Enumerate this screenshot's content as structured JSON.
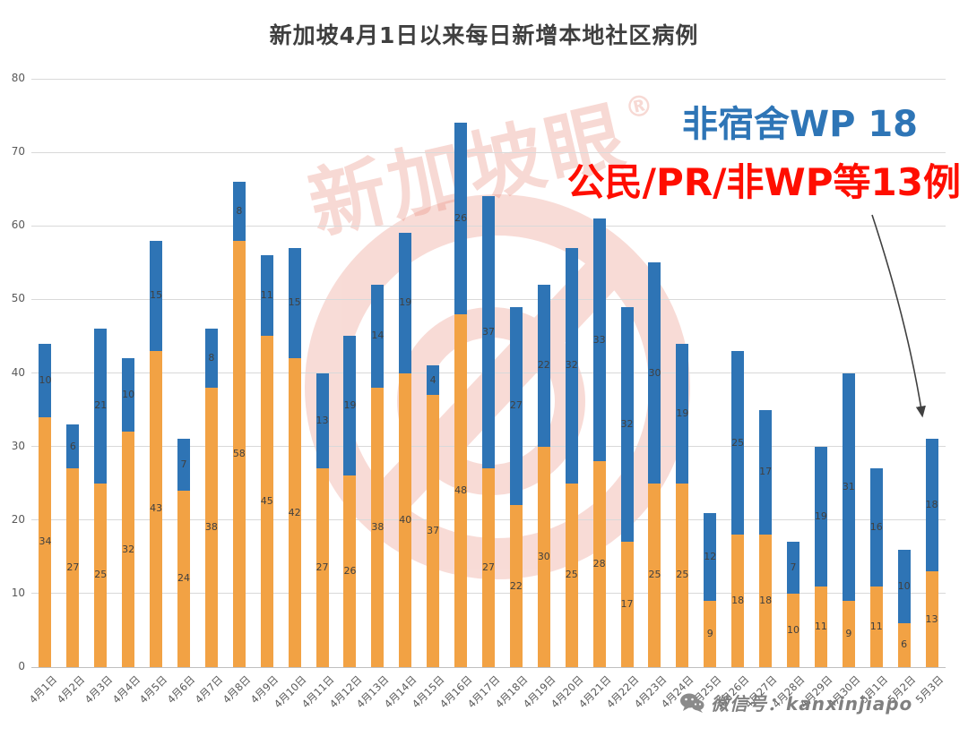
{
  "title": "新加坡4月1日以来每日新增本地社区病例",
  "annotations": {
    "line1": "非宿舍WP 18",
    "line2": "公民/PR/非WP等13例"
  },
  "watermark": {
    "text": "新加坡眼",
    "reg_mark": "®"
  },
  "footer": {
    "wechat_account": "微信号：kanxinjiapo"
  },
  "colors": {
    "bar_orange": "#F2A244",
    "bar_blue": "#2E74B5",
    "annotation_blue": "#2E75B6",
    "annotation_red": "#FF0E00",
    "grid": "#D9D9D9",
    "axis_text": "#595959",
    "data_label": "#404040",
    "title_text": "#3F3F3F",
    "watermark": "#E98B7B",
    "footer_text": "#808080",
    "arrow": "#404040"
  },
  "chart_data": {
    "type": "bar",
    "stacked": true,
    "title": "新加坡4月1日以来每日新增本地社区病例",
    "xlabel": "",
    "ylabel": "",
    "ylim": [
      0,
      80
    ],
    "yticks": [
      0,
      10,
      20,
      30,
      40,
      50,
      60,
      70,
      80
    ],
    "grid": true,
    "legend_position": "none",
    "data_labels": true,
    "categories": [
      "4月1日",
      "4月2日",
      "4月3日",
      "4月4日",
      "4月5日",
      "4月6日",
      "4月7日",
      "4月8日",
      "4月9日",
      "4月10日",
      "4月11日",
      "4月12日",
      "4月13日",
      "4月14日",
      "4月15日",
      "4月16日",
      "4月17日",
      "4月18日",
      "4月19日",
      "4月20日",
      "4月21日",
      "4月22日",
      "4月23日",
      "4月24日",
      "4月25日",
      "4月26日",
      "4月27日",
      "4月28日",
      "4月29日",
      "4月30日",
      "5月1日",
      "5月2日",
      "5月3日"
    ],
    "series": [
      {
        "name": "公民/PR/非WP",
        "color": "#F2A244",
        "values": [
          34,
          27,
          25,
          32,
          43,
          24,
          38,
          58,
          45,
          42,
          27,
          26,
          38,
          40,
          37,
          48,
          27,
          22,
          30,
          25,
          28,
          17,
          25,
          25,
          9,
          18,
          18,
          10,
          11,
          9,
          11,
          6,
          13
        ]
      },
      {
        "name": "非宿舍WP",
        "color": "#2E74B5",
        "values": [
          10,
          6,
          21,
          10,
          15,
          7,
          8,
          8,
          11,
          15,
          13,
          19,
          14,
          19,
          4,
          26,
          37,
          27,
          22,
          32,
          33,
          32,
          30,
          19,
          12,
          25,
          17,
          7,
          19,
          31,
          16,
          10,
          18
        ]
      }
    ],
    "totals": [
      44,
      33,
      46,
      42,
      58,
      31,
      46,
      66,
      56,
      57,
      40,
      45,
      52,
      59,
      41,
      74,
      64,
      49,
      52,
      57,
      61,
      49,
      55,
      44,
      21,
      43,
      35,
      17,
      30,
      40,
      27,
      16,
      31
    ]
  }
}
